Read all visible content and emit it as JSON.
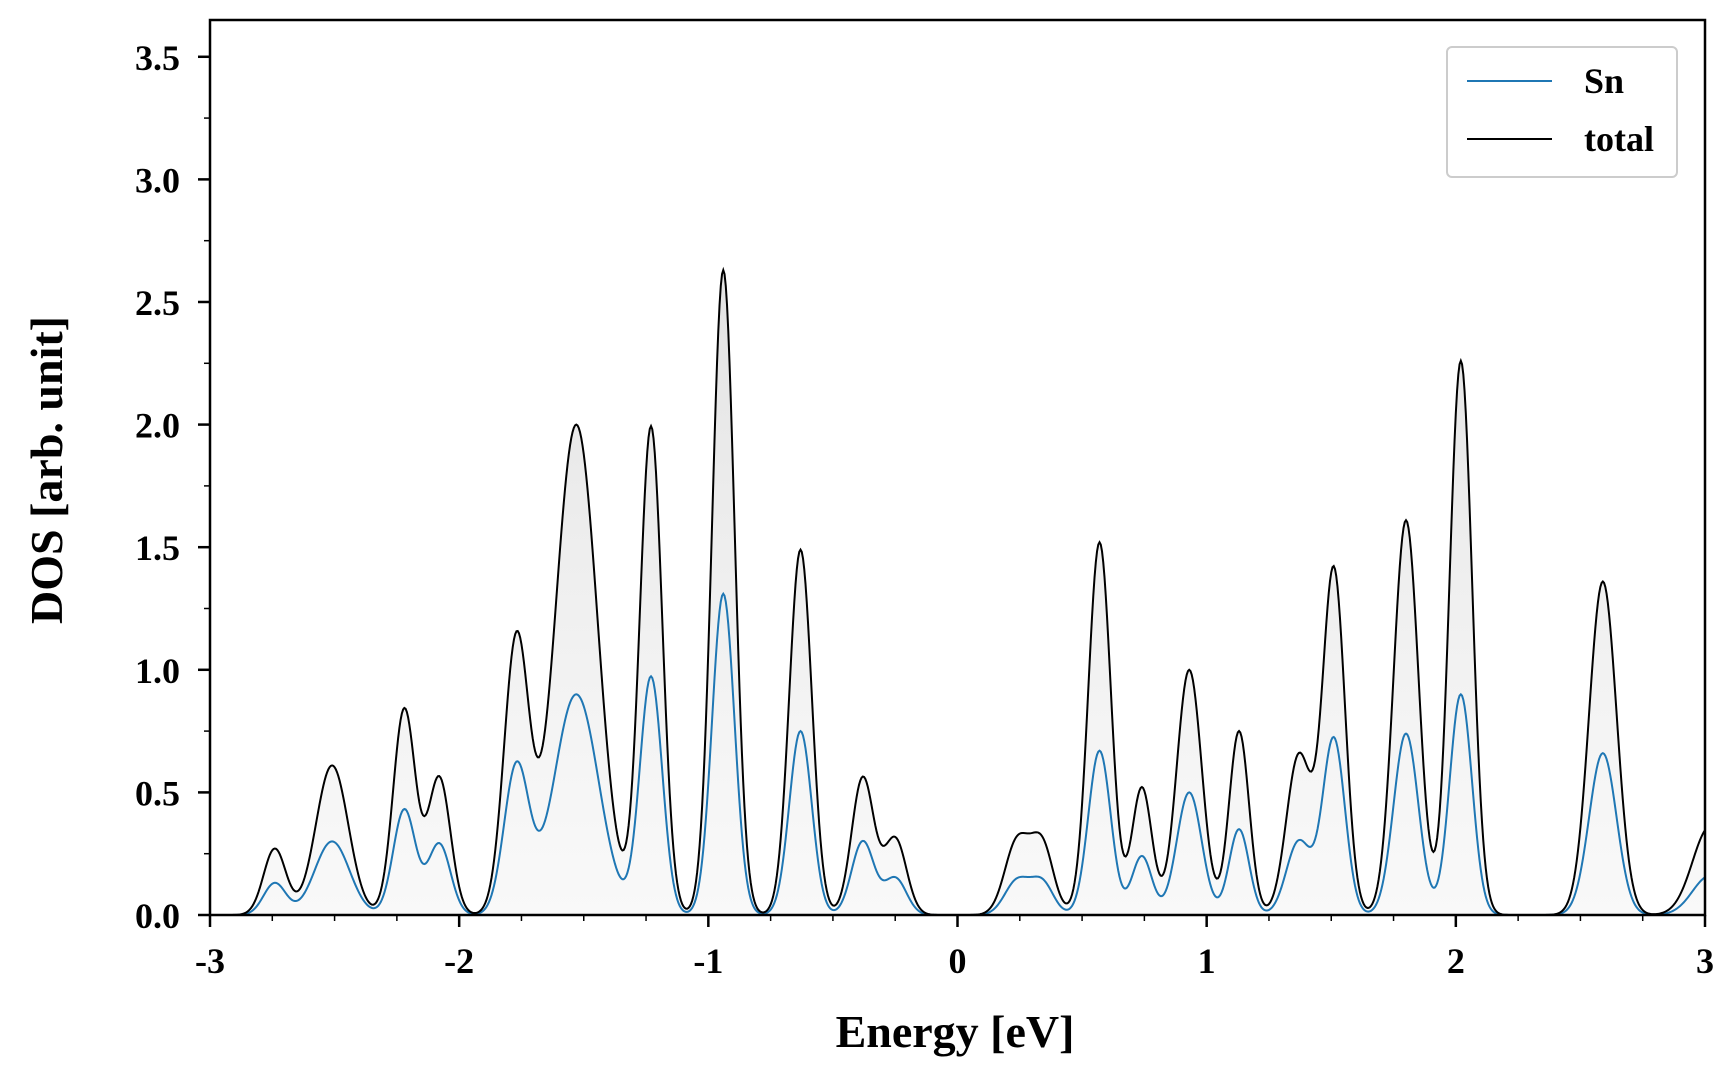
{
  "chart_data": {
    "type": "line",
    "title": "",
    "xlabel": "Energy [eV]",
    "ylabel": "DOS [arb. unit]",
    "xlim": [
      -3,
      3
    ],
    "ylim": [
      0,
      3.65
    ],
    "x_ticks": [
      -3,
      -2,
      -1,
      0,
      1,
      2,
      3
    ],
    "x_tick_labels": [
      "-3",
      "-2",
      "-1",
      "0",
      "1",
      "2",
      "3"
    ],
    "y_ticks": [
      0.0,
      0.5,
      1.0,
      1.5,
      2.0,
      2.5,
      3.0,
      3.5
    ],
    "y_tick_labels": [
      "0.0",
      "0.5",
      "1.0",
      "1.5",
      "2.0",
      "2.5",
      "3.0",
      "3.5"
    ],
    "grid": false,
    "legend_position": "top-right",
    "series": [
      {
        "name": "Sn",
        "color": "#1f77b4",
        "peaks": [
          {
            "center": -2.74,
            "height": 0.13,
            "width": 0.045
          },
          {
            "center": -2.51,
            "height": 0.3,
            "width": 0.07
          },
          {
            "center": -2.22,
            "height": 0.43,
            "width": 0.045
          },
          {
            "center": -2.08,
            "height": 0.29,
            "width": 0.045
          },
          {
            "center": -1.77,
            "height": 0.6,
            "width": 0.05
          },
          {
            "center": -1.53,
            "height": 0.9,
            "width": 0.09
          },
          {
            "center": -1.23,
            "height": 0.97,
            "width": 0.045
          },
          {
            "center": -0.94,
            "height": 1.31,
            "width": 0.045
          },
          {
            "center": -0.63,
            "height": 0.75,
            "width": 0.045
          },
          {
            "center": -0.38,
            "height": 0.3,
            "width": 0.045
          },
          {
            "center": -0.25,
            "height": 0.15,
            "width": 0.045
          },
          {
            "center": 0.24,
            "height": 0.14,
            "width": 0.05
          },
          {
            "center": 0.34,
            "height": 0.13,
            "width": 0.045
          },
          {
            "center": 0.57,
            "height": 0.67,
            "width": 0.045
          },
          {
            "center": 0.74,
            "height": 0.24,
            "width": 0.04
          },
          {
            "center": 0.93,
            "height": 0.5,
            "width": 0.05
          },
          {
            "center": 1.13,
            "height": 0.35,
            "width": 0.04
          },
          {
            "center": 1.37,
            "height": 0.3,
            "width": 0.05
          },
          {
            "center": 1.51,
            "height": 0.72,
            "width": 0.045
          },
          {
            "center": 1.8,
            "height": 0.74,
            "width": 0.05
          },
          {
            "center": 2.02,
            "height": 0.9,
            "width": 0.045
          },
          {
            "center": 2.59,
            "height": 0.66,
            "width": 0.055
          },
          {
            "center": 3.02,
            "height": 0.16,
            "width": 0.07
          }
        ]
      },
      {
        "name": "total",
        "color": "#000000",
        "fill": "#e8e8e8",
        "peaks": [
          {
            "center": -2.74,
            "height": 0.27,
            "width": 0.045
          },
          {
            "center": -2.51,
            "height": 0.61,
            "width": 0.065
          },
          {
            "center": -2.22,
            "height": 0.84,
            "width": 0.045
          },
          {
            "center": -2.08,
            "height": 0.56,
            "width": 0.045
          },
          {
            "center": -1.77,
            "height": 1.12,
            "width": 0.05
          },
          {
            "center": -1.53,
            "height": 2.0,
            "width": 0.085
          },
          {
            "center": -1.23,
            "height": 1.99,
            "width": 0.045
          },
          {
            "center": -0.94,
            "height": 2.63,
            "width": 0.045
          },
          {
            "center": -0.63,
            "height": 1.49,
            "width": 0.045
          },
          {
            "center": -0.38,
            "height": 0.56,
            "width": 0.045
          },
          {
            "center": -0.25,
            "height": 0.31,
            "width": 0.045
          },
          {
            "center": 0.24,
            "height": 0.3,
            "width": 0.05
          },
          {
            "center": 0.34,
            "height": 0.28,
            "width": 0.045
          },
          {
            "center": 0.57,
            "height": 1.52,
            "width": 0.045
          },
          {
            "center": 0.74,
            "height": 0.52,
            "width": 0.04
          },
          {
            "center": 0.93,
            "height": 1.0,
            "width": 0.05
          },
          {
            "center": 1.13,
            "height": 0.75,
            "width": 0.04
          },
          {
            "center": 1.37,
            "height": 0.65,
            "width": 0.05
          },
          {
            "center": 1.51,
            "height": 1.41,
            "width": 0.045
          },
          {
            "center": 1.8,
            "height": 1.61,
            "width": 0.05
          },
          {
            "center": 2.02,
            "height": 2.26,
            "width": 0.045
          },
          {
            "center": 2.59,
            "height": 1.36,
            "width": 0.055
          },
          {
            "center": 3.02,
            "height": 0.36,
            "width": 0.07
          }
        ]
      }
    ]
  }
}
